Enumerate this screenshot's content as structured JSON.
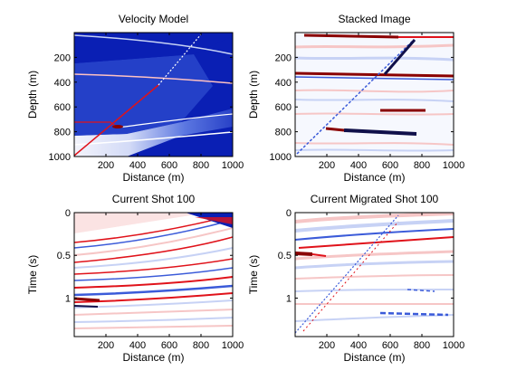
{
  "colors": {
    "deep_blue": "#0a1fb4",
    "mid_blue": "#3b5bd9",
    "pale_blue": "#c7d2f5",
    "white": "#ffffff",
    "red": "#e0121a",
    "dark_red": "#8a0000",
    "pale_red": "#f6c6c6",
    "navy": "#10104a"
  },
  "chart_data": [
    {
      "type": "heatmap",
      "title": "Velocity Model",
      "xlabel": "Distance (m)",
      "ylabel": "Depth (m)",
      "xlim": [
        0,
        1000
      ],
      "ylim": [
        1000,
        0
      ],
      "xticks": [
        "200",
        "400",
        "600",
        "800",
        "1000"
      ],
      "yticks": [
        "200",
        "400",
        "600",
        "800",
        "1000"
      ],
      "colormap": "blue-white-red",
      "reflectors_depth_m": [
        25,
        345,
        720,
        800
      ],
      "dipping_reflector": {
        "from": [
          0,
          1000
        ],
        "to": [
          800,
          0
        ]
      }
    },
    {
      "type": "heatmap",
      "title": "Stacked Image",
      "xlabel": "Distance (m)",
      "ylabel": "Depth (m)",
      "xlim": [
        0,
        1000
      ],
      "ylim": [
        1000,
        0
      ],
      "xticks": [
        "200",
        "400",
        "600",
        "800",
        "1000"
      ],
      "yticks": [
        "200",
        "400",
        "600",
        "800",
        "1000"
      ],
      "colormap": "blue-white-red",
      "events_depth_m": [
        30,
        345,
        640,
        800
      ]
    },
    {
      "type": "heatmap",
      "title": "Current Shot 100",
      "xlabel": "Distance (m)",
      "ylabel": "Time (s)",
      "xlim": [
        0,
        1000
      ],
      "ylim": [
        1.45,
        0
      ],
      "xticks": [
        "200",
        "400",
        "600",
        "800",
        "1000"
      ],
      "yticks": [
        "0",
        "0.5",
        "1"
      ],
      "colormap": "blue-white-red",
      "shot_number": 100
    },
    {
      "type": "heatmap",
      "title": "Current Migrated Shot 100",
      "xlabel": "Distance (m)",
      "ylabel": "Time (s)",
      "xlim": [
        0,
        1000
      ],
      "ylim": [
        1.45,
        0
      ],
      "xticks": [
        "200",
        "400",
        "600",
        "800",
        "1000"
      ],
      "yticks": [
        "0",
        "0.5",
        "1"
      ],
      "colormap": "blue-white-red",
      "shot_number": 100
    }
  ]
}
